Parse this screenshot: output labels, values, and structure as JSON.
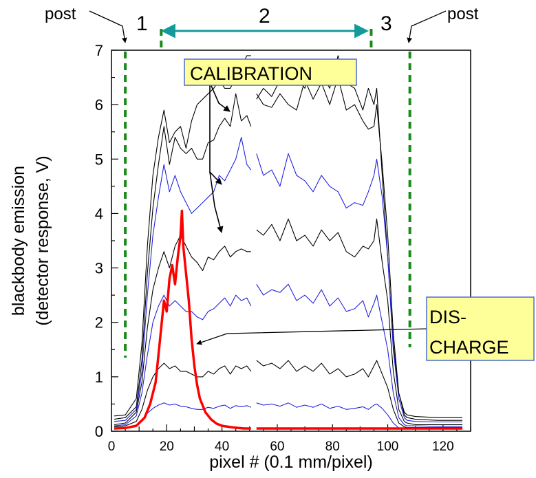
{
  "chart_data": {
    "type": "line",
    "title": "",
    "xlabel": "pixel # (0.1 mm/pixel)",
    "ylabel": [
      "blackbody emission",
      "(detector response, V)"
    ],
    "xlim": [
      0,
      130
    ],
    "ylim": [
      0,
      7
    ],
    "xticks": [
      0,
      20,
      40,
      60,
      80,
      100,
      120
    ],
    "yticks": [
      0,
      1,
      2,
      3,
      4,
      5,
      6,
      7
    ],
    "grid": false,
    "vertical_markers": [
      5,
      18,
      94,
      108
    ],
    "region_labels": [
      "1",
      "2",
      "3"
    ],
    "post_labels": [
      "post",
      "post"
    ],
    "annotations": {
      "calibration": "CALIBRATION",
      "discharge_line1": "DIS-",
      "discharge_line2": "CHARGE"
    },
    "colors": {
      "calibration_dark": "#000000",
      "calibration_blue": "#2222dd",
      "discharge": "#ff0000",
      "marker": "#1a8a1a",
      "region_arrow": "#159a9a",
      "label_box": "#ffff99"
    },
    "series": [
      {
        "color": "#000000",
        "x": [
          1,
          5,
          9,
          11,
          13,
          15,
          17,
          19,
          21,
          23,
          25,
          27,
          29,
          31,
          33,
          35,
          37,
          39,
          41,
          43,
          45,
          47,
          49,
          50.5,
          52.5,
          55,
          58,
          61,
          64,
          67,
          70,
          73,
          76,
          79,
          82,
          85,
          88,
          91,
          93,
          95,
          96,
          98,
          100,
          102,
          104,
          106,
          107,
          110,
          118,
          127
        ],
        "y": [
          0.28,
          0.3,
          0.6,
          1.6,
          3.4,
          4.7,
          5.4,
          5.9,
          5.3,
          5.5,
          5.6,
          5.2,
          5.7,
          6.0,
          6.1,
          6.2,
          6.3,
          6.45,
          6.3,
          6.3,
          6.5,
          6.7,
          6.9,
          6.9,
          6.1,
          6.3,
          6.15,
          6.45,
          6.6,
          6.5,
          6.3,
          6.8,
          6.6,
          6.3,
          6.9,
          6.4,
          6.3,
          5.9,
          6.3,
          6.0,
          6.3,
          4.7,
          3.2,
          1.6,
          0.7,
          0.35,
          0.3,
          0.27,
          0.25,
          0.25
        ]
      },
      {
        "color": "#000000",
        "x": [
          1,
          5,
          9,
          11,
          13,
          15,
          17,
          19,
          21,
          23,
          25,
          27,
          29,
          31,
          33,
          35,
          37,
          39,
          41,
          43,
          45,
          47,
          49,
          50.5,
          52.5,
          55,
          58,
          61,
          64,
          67,
          70,
          73,
          76,
          79,
          82,
          85,
          88,
          91,
          93,
          95,
          96,
          98,
          100,
          102,
          104,
          106,
          107,
          110,
          118,
          127
        ],
        "y": [
          0.22,
          0.25,
          0.45,
          1.3,
          2.9,
          4.1,
          4.9,
          5.6,
          4.9,
          5.4,
          5.2,
          5.1,
          5.2,
          5.0,
          5.0,
          5.3,
          5.35,
          5.6,
          5.75,
          5.6,
          6.2,
          5.7,
          5.8,
          5.6,
          6.2,
          6.0,
          5.95,
          6.2,
          6.0,
          5.9,
          6.45,
          6.1,
          6.4,
          6.0,
          6.5,
          5.9,
          6.0,
          5.7,
          5.55,
          5.6,
          6.0,
          4.9,
          3.6,
          1.8,
          0.7,
          0.3,
          0.25,
          0.22,
          0.2,
          0.2
        ]
      },
      {
        "color": "#2222dd",
        "x": [
          1,
          5,
          9,
          11,
          13,
          15,
          17,
          19,
          21,
          23,
          25,
          27,
          29,
          31,
          33,
          35,
          37,
          39,
          41,
          43,
          45,
          47,
          49,
          50.5,
          52.5,
          55,
          58,
          61,
          64,
          67,
          70,
          73,
          76,
          79,
          82,
          85,
          88,
          91,
          93,
          95,
          96,
          98,
          100,
          102,
          104,
          106,
          107,
          110,
          118,
          127
        ],
        "y": [
          0.18,
          0.2,
          0.4,
          1.1,
          2.5,
          3.6,
          4.3,
          4.9,
          4.4,
          4.7,
          4.4,
          4.2,
          4.0,
          4.1,
          4.2,
          4.3,
          4.4,
          4.7,
          4.6,
          4.8,
          5.0,
          5.4,
          4.9,
          4.8,
          5.1,
          4.7,
          4.8,
          4.5,
          5.1,
          4.7,
          4.6,
          4.4,
          4.7,
          4.5,
          4.4,
          4.1,
          4.2,
          4.15,
          4.4,
          4.7,
          5.0,
          4.3,
          3.2,
          1.5,
          0.6,
          0.25,
          0.2,
          0.18,
          0.17,
          0.17
        ]
      },
      {
        "color": "#000000",
        "x": [
          1,
          5,
          9,
          11,
          13,
          15,
          17,
          19,
          21,
          23,
          25,
          27,
          29,
          31,
          33,
          35,
          37,
          39,
          41,
          43,
          45,
          47,
          49,
          50.5,
          52.5,
          55,
          58,
          61,
          64,
          67,
          70,
          73,
          76,
          79,
          82,
          85,
          88,
          91,
          93,
          95,
          96,
          98,
          100,
          102,
          104,
          106,
          107,
          110,
          118,
          127
        ],
        "y": [
          0.12,
          0.15,
          0.35,
          0.9,
          1.9,
          2.6,
          3.0,
          3.3,
          3.0,
          3.4,
          3.6,
          3.4,
          3.2,
          3.1,
          2.95,
          3.2,
          3.15,
          3.3,
          3.4,
          3.2,
          3.3,
          3.35,
          3.3,
          3.3,
          3.7,
          3.6,
          3.8,
          3.5,
          3.9,
          3.5,
          3.6,
          3.4,
          3.7,
          3.5,
          3.65,
          3.3,
          3.2,
          3.4,
          3.35,
          3.5,
          3.9,
          3.1,
          2.4,
          1.1,
          0.4,
          0.18,
          0.15,
          0.12,
          0.12,
          0.12
        ]
      },
      {
        "color": "#2222dd",
        "x": [
          1,
          5,
          9,
          11,
          13,
          15,
          17,
          19,
          21,
          23,
          25,
          27,
          29,
          31,
          33,
          35,
          37,
          39,
          41,
          43,
          45,
          47,
          49,
          50.5,
          52.5,
          55,
          58,
          61,
          64,
          67,
          70,
          73,
          76,
          79,
          82,
          85,
          88,
          91,
          93,
          95,
          96,
          98,
          100,
          102,
          104,
          106,
          107,
          110,
          118,
          127
        ],
        "y": [
          0.1,
          0.12,
          0.28,
          0.7,
          1.4,
          2.0,
          2.3,
          2.5,
          2.3,
          2.4,
          2.3,
          2.2,
          2.2,
          2.1,
          2.05,
          2.2,
          2.25,
          2.35,
          2.45,
          2.3,
          2.5,
          2.4,
          2.45,
          2.3,
          2.7,
          2.5,
          2.6,
          2.55,
          2.7,
          2.4,
          2.5,
          2.35,
          2.6,
          2.3,
          2.45,
          2.2,
          2.25,
          2.4,
          2.1,
          2.35,
          2.5,
          2.0,
          1.5,
          0.7,
          0.25,
          0.12,
          0.1,
          0.1,
          0.09,
          0.09
        ]
      },
      {
        "color": "#000000",
        "x": [
          1,
          5,
          9,
          11,
          13,
          15,
          17,
          19,
          21,
          23,
          25,
          27,
          29,
          31,
          33,
          35,
          37,
          39,
          41,
          43,
          45,
          47,
          49,
          50.5,
          52.5,
          55,
          58,
          61,
          64,
          67,
          70,
          73,
          76,
          79,
          82,
          85,
          88,
          91,
          93,
          95,
          96,
          98,
          100,
          102,
          104,
          106,
          107,
          110,
          118,
          127
        ],
        "y": [
          0.08,
          0.1,
          0.18,
          0.4,
          0.75,
          1.0,
          1.15,
          1.25,
          1.15,
          1.2,
          1.1,
          1.1,
          1.05,
          1.0,
          1.0,
          1.1,
          1.05,
          1.15,
          1.2,
          1.05,
          1.2,
          1.15,
          1.2,
          1.1,
          1.3,
          1.2,
          1.25,
          1.15,
          1.3,
          1.1,
          1.2,
          1.1,
          1.25,
          1.05,
          1.15,
          1.0,
          1.05,
          1.15,
          1.0,
          1.2,
          1.3,
          1.05,
          0.8,
          0.4,
          0.15,
          0.08,
          0.07,
          0.07,
          0.07,
          0.07
        ]
      },
      {
        "color": "#2222dd",
        "x": [
          1,
          5,
          9,
          11,
          13,
          15,
          17,
          19,
          21,
          23,
          25,
          27,
          29,
          31,
          33,
          35,
          37,
          39,
          41,
          43,
          45,
          47,
          49,
          50.5,
          52.5,
          55,
          58,
          61,
          64,
          67,
          70,
          73,
          76,
          79,
          82,
          85,
          88,
          91,
          93,
          95,
          96,
          98,
          100,
          102,
          104,
          106,
          107,
          110,
          118,
          127
        ],
        "y": [
          0.05,
          0.06,
          0.1,
          0.2,
          0.33,
          0.42,
          0.48,
          0.52,
          0.48,
          0.5,
          0.46,
          0.45,
          0.42,
          0.4,
          0.4,
          0.44,
          0.42,
          0.46,
          0.48,
          0.42,
          0.47,
          0.45,
          0.47,
          0.44,
          0.52,
          0.48,
          0.5,
          0.46,
          0.52,
          0.44,
          0.48,
          0.44,
          0.5,
          0.42,
          0.46,
          0.4,
          0.42,
          0.45,
          0.4,
          0.48,
          0.5,
          0.42,
          0.3,
          0.15,
          0.06,
          0.05,
          0.04,
          0.04,
          0.04,
          0.04
        ]
      },
      {
        "color": "#ff0000",
        "x": [
          1,
          5,
          9,
          12,
          14,
          16,
          17,
          18,
          19,
          20,
          21,
          22,
          23,
          24,
          25,
          25.5,
          26,
          27,
          28,
          29,
          30,
          31,
          32,
          34,
          36,
          38,
          40,
          44,
          48,
          50.5,
          52.5,
          60,
          70,
          80,
          90,
          100,
          110,
          120,
          127
        ],
        "y": [
          0.05,
          0.06,
          0.1,
          0.25,
          0.5,
          0.9,
          1.4,
          1.9,
          2.4,
          2.2,
          2.8,
          3.05,
          2.7,
          3.2,
          3.6,
          4.05,
          3.4,
          2.9,
          2.4,
          1.7,
          1.2,
          0.85,
          0.6,
          0.35,
          0.22,
          0.14,
          0.1,
          0.07,
          0.05,
          0.05,
          0.05,
          0.05,
          0.05,
          0.05,
          0.05,
          0.05,
          0.05,
          0.05,
          0.05
        ]
      }
    ]
  }
}
